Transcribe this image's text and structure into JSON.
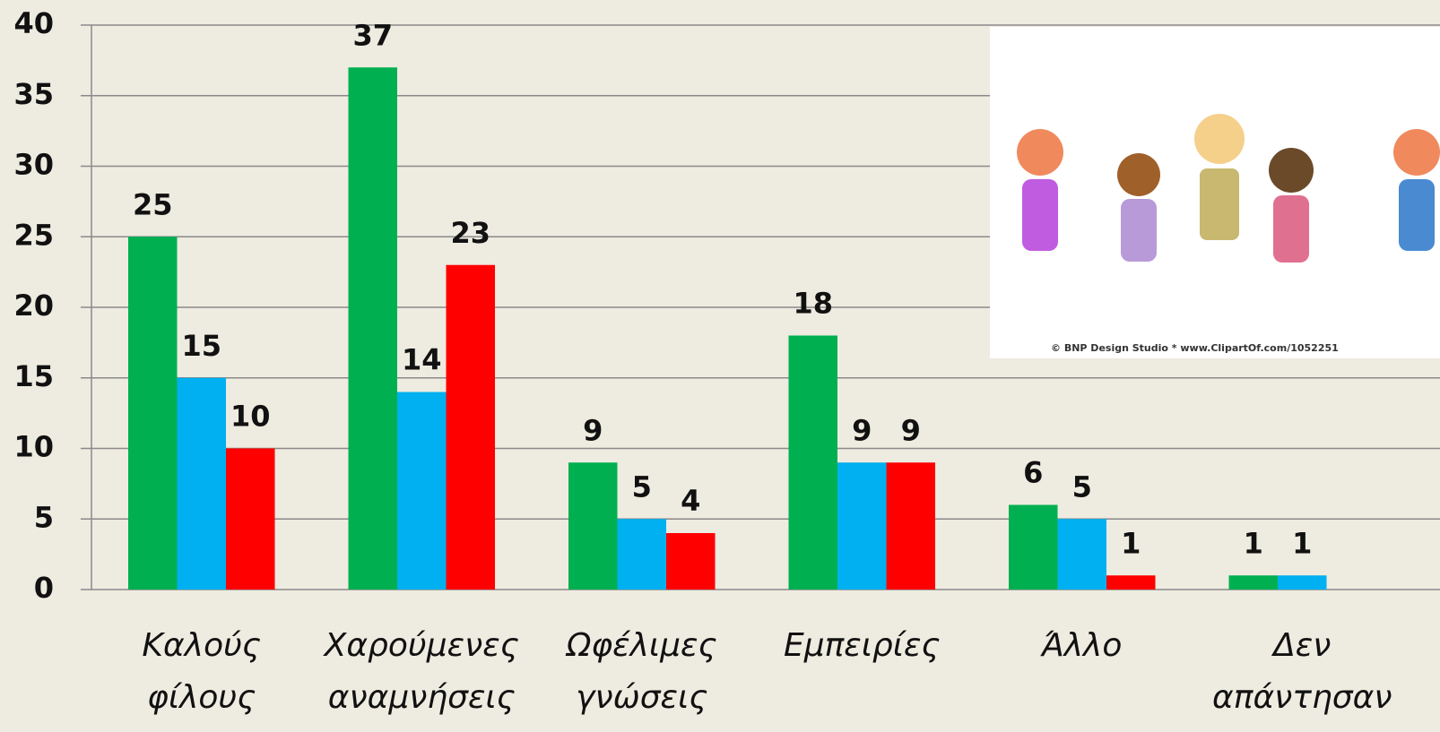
{
  "chart_data": {
    "type": "bar",
    "categories": [
      "Καλούς φίλους",
      "Χαρούμενες αναμνήσεις",
      "Ωφέλιμες γνώσεις",
      "Εμπειρίες",
      "Άλλο",
      "Δεν απάντησαν"
    ],
    "series": [
      {
        "color": "#00b050",
        "values": [
          25,
          37,
          9,
          18,
          6,
          1
        ]
      },
      {
        "color": "#00b0f0",
        "values": [
          15,
          14,
          5,
          9,
          5,
          1
        ]
      },
      {
        "color": "#ff0000",
        "values": [
          10,
          23,
          4,
          9,
          1,
          null
        ]
      }
    ],
    "ylim": [
      0,
      40
    ],
    "yticks": [
      0,
      5,
      10,
      15,
      20,
      25,
      30,
      35,
      40
    ],
    "grid": true,
    "image_credit": "© BNP Design Studio * www.ClipartOf.com/1052251"
  }
}
